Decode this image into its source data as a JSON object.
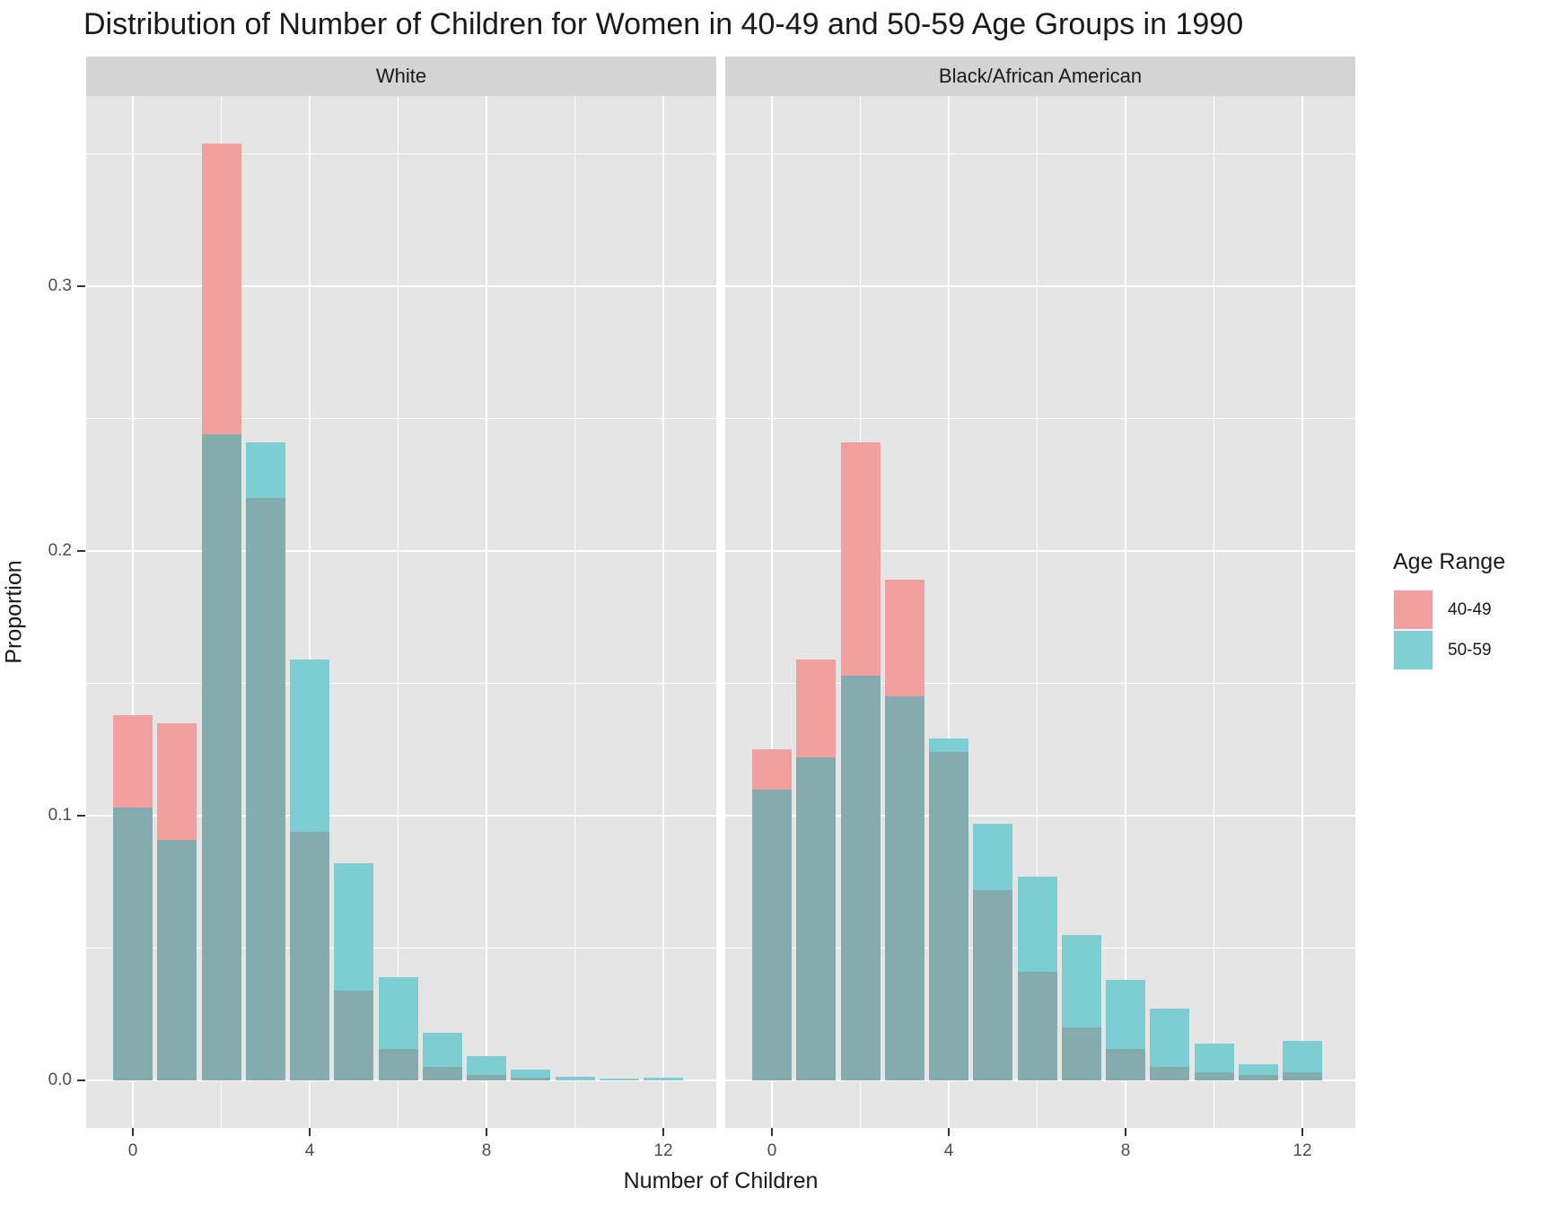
{
  "title": "Distribution of Number of Children for Women in 40-49 and 50-59 Age Groups in 1990",
  "chart_data": {
    "type": "bar",
    "title": "Distribution of Number of Children for Women in 40-49 and 50-59 Age Groups in 1990",
    "xlabel": "Number of Children",
    "ylabel": "Proportion",
    "categories": [
      0,
      1,
      2,
      3,
      4,
      5,
      6,
      7,
      8,
      9,
      10,
      11,
      12
    ],
    "x_ticks": [
      0,
      4,
      8,
      12
    ],
    "y_ticks": [
      {
        "label": "0.0",
        "value": 0.0
      },
      {
        "label": "0.1",
        "value": 0.1
      },
      {
        "label": "0.2",
        "value": 0.2
      },
      {
        "label": "0.3",
        "value": 0.3
      }
    ],
    "ylim": [
      -0.018,
      0.372
    ],
    "grid": "on",
    "legend_position": "right",
    "facets": [
      {
        "label": "White",
        "series": [
          {
            "name": "40-49",
            "values": [
              0.138,
              0.135,
              0.354,
              0.22,
              0.094,
              0.034,
              0.012,
              0.005,
              0.002,
              0.001,
              0,
              0,
              0
            ]
          },
          {
            "name": "50-59",
            "values": [
              0.103,
              0.091,
              0.244,
              0.241,
              0.159,
              0.082,
              0.039,
              0.018,
              0.009,
              0.004,
              0.0015,
              0.0006,
              0.001
            ]
          }
        ]
      },
      {
        "label": "Black/African American",
        "series": [
          {
            "name": "40-49",
            "values": [
              0.125,
              0.159,
              0.241,
              0.189,
              0.124,
              0.072,
              0.041,
              0.02,
              0.012,
              0.005,
              0.003,
              0.002,
              0.003
            ]
          },
          {
            "name": "50-59",
            "values": [
              0.11,
              0.122,
              0.153,
              0.145,
              0.129,
              0.097,
              0.077,
              0.055,
              0.038,
              0.027,
              0.014,
              0.006,
              0.015
            ]
          }
        ]
      }
    ],
    "legend": {
      "title": "Age Range",
      "entries": [
        {
          "label": "40-49",
          "color": "#F2A09F"
        },
        {
          "label": "50-59",
          "color": "#7ED0D3"
        }
      ]
    },
    "colors": {
      "pink_only": "#F0A19F",
      "teal_only": "#7DCED2",
      "overlap": "#84ACAE",
      "panel_bg": "#E5E5E5",
      "strip_bg": "#D4D4D4",
      "gridline": "#FFFFFF",
      "tick_mark": "#333333",
      "axis_text": "#4D4D4D"
    }
  }
}
